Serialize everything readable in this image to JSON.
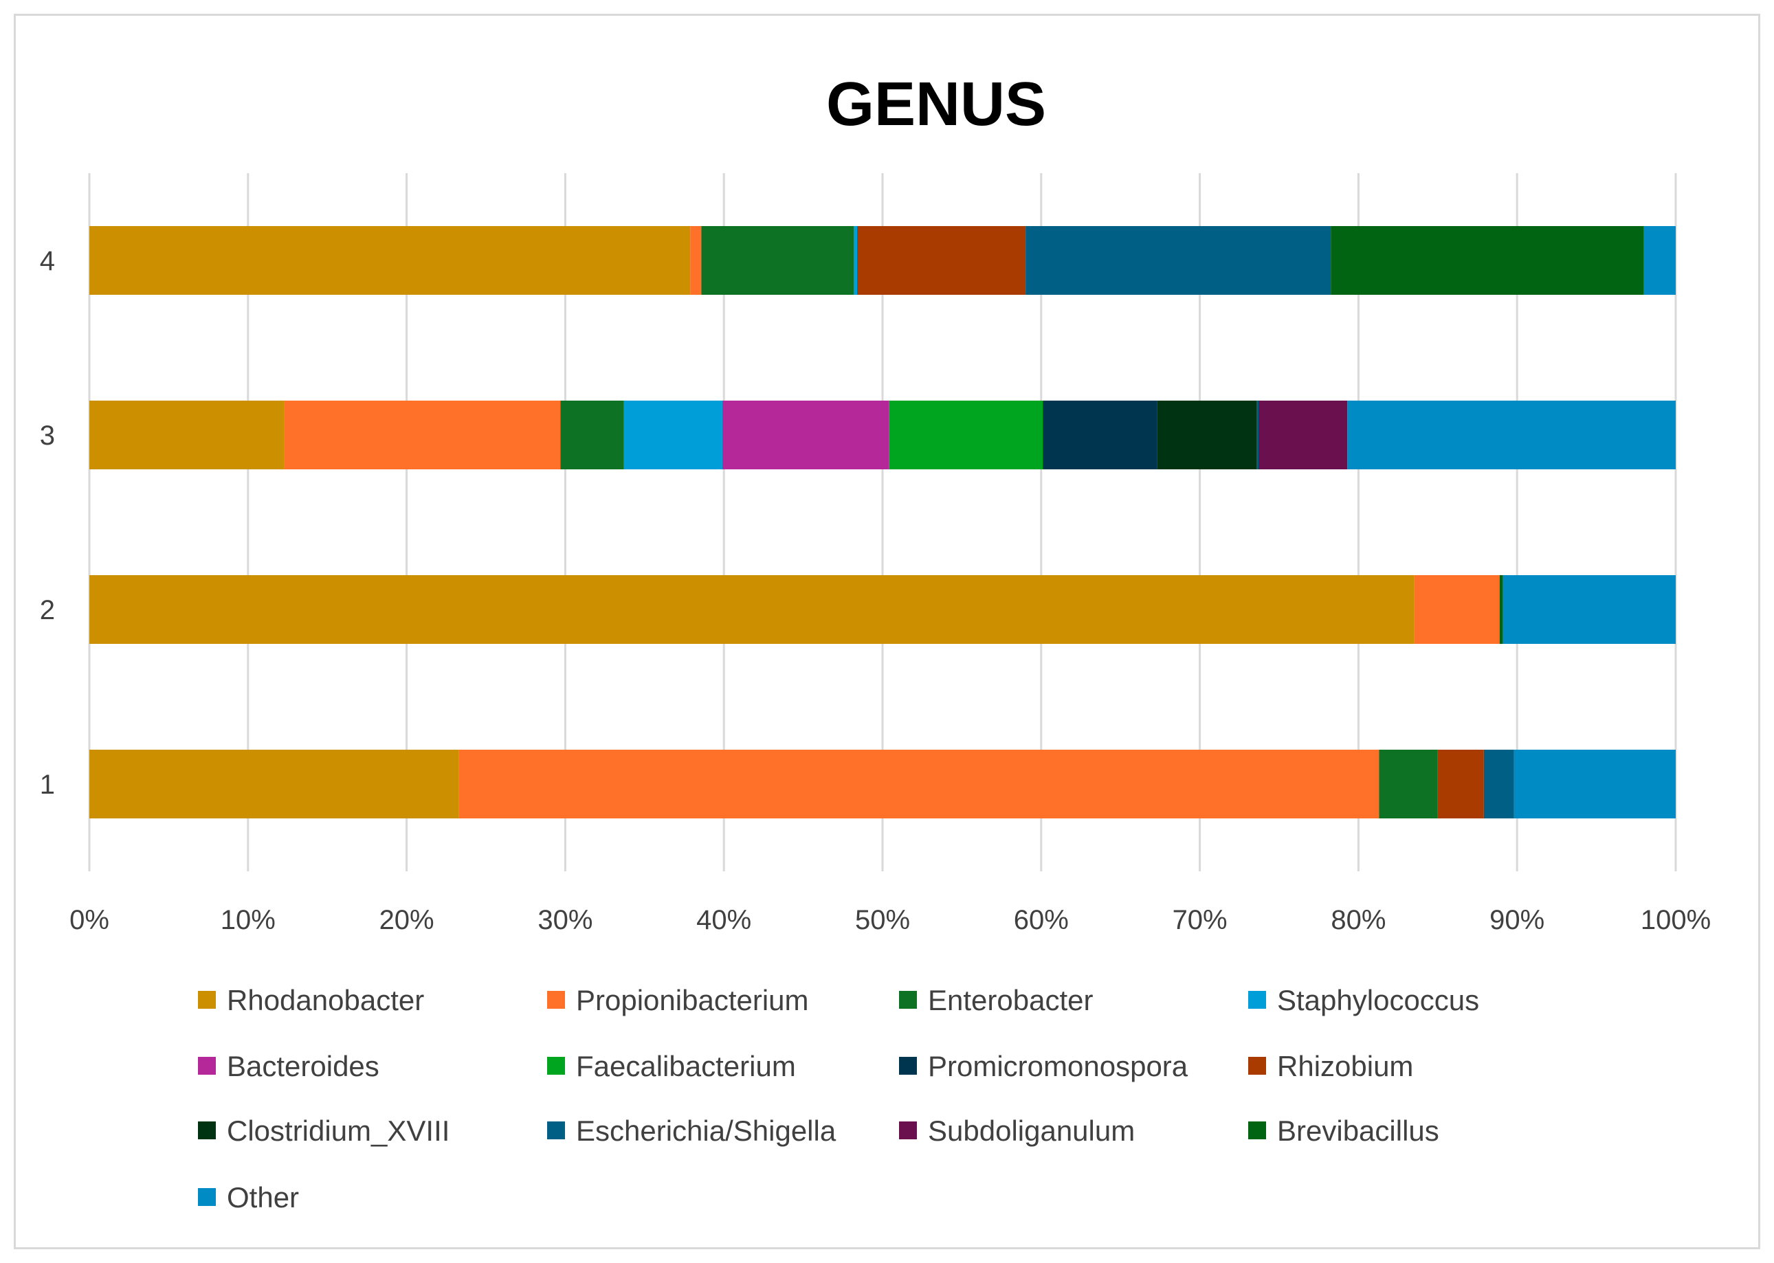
{
  "chart_data": {
    "type": "bar",
    "orientation": "horizontal",
    "stacked": "percent",
    "title": "GENUS",
    "xlabel": "",
    "ylabel": "",
    "xlim": [
      0,
      100
    ],
    "x_ticks": [
      "0%",
      "10%",
      "20%",
      "30%",
      "40%",
      "50%",
      "60%",
      "70%",
      "80%",
      "90%",
      "100%"
    ],
    "categories": [
      "1",
      "2",
      "3",
      "4"
    ],
    "grid": "vertical",
    "legend_position": "bottom",
    "series": [
      {
        "name": "Rhodanobacter",
        "color": "#cc8f00",
        "values": [
          23.3,
          83.5,
          12.3,
          37.8
        ]
      },
      {
        "name": "Propionibacterium",
        "color": "#ff7028",
        "values": [
          58.0,
          5.4,
          17.4,
          0.7
        ]
      },
      {
        "name": "Enterobacter",
        "color": "#0e7224",
        "values": [
          3.7,
          0.0,
          4.0,
          9.6
        ]
      },
      {
        "name": "Staphylococcus",
        "color": "#009ed8",
        "values": [
          0.0,
          0.0,
          6.2,
          0.2
        ]
      },
      {
        "name": "Bacteroides",
        "color": "#b4289a",
        "values": [
          0.0,
          0.0,
          10.5,
          0.0
        ]
      },
      {
        "name": "Faecalibacterium",
        "color": "#00a51f",
        "values": [
          0.0,
          0.0,
          9.7,
          0.0
        ]
      },
      {
        "name": "Promicromonospora",
        "color": "#003550",
        "values": [
          0.0,
          0.0,
          7.2,
          0.0
        ]
      },
      {
        "name": "Rhizobium",
        "color": "#a93b00",
        "values": [
          2.9,
          0.0,
          0.0,
          10.6
        ]
      },
      {
        "name": "Clostridium_XVIII",
        "color": "#003311",
        "values": [
          0.0,
          0.0,
          6.3,
          0.0
        ]
      },
      {
        "name": "Escherichia/Shigella",
        "color": "#005f84",
        "values": [
          1.9,
          0.0,
          0.1,
          19.2
        ]
      },
      {
        "name": "Subdoliganulum",
        "color": "#6a104e",
        "values": [
          0.0,
          0.0,
          5.6,
          0.0
        ]
      },
      {
        "name": "Brevibacillus",
        "color": "#006412",
        "values": [
          0.0,
          0.2,
          0.0,
          19.7
        ]
      },
      {
        "name": "Other",
        "color": "#008bc5",
        "values": [
          10.2,
          10.9,
          20.7,
          2.0
        ]
      }
    ]
  }
}
